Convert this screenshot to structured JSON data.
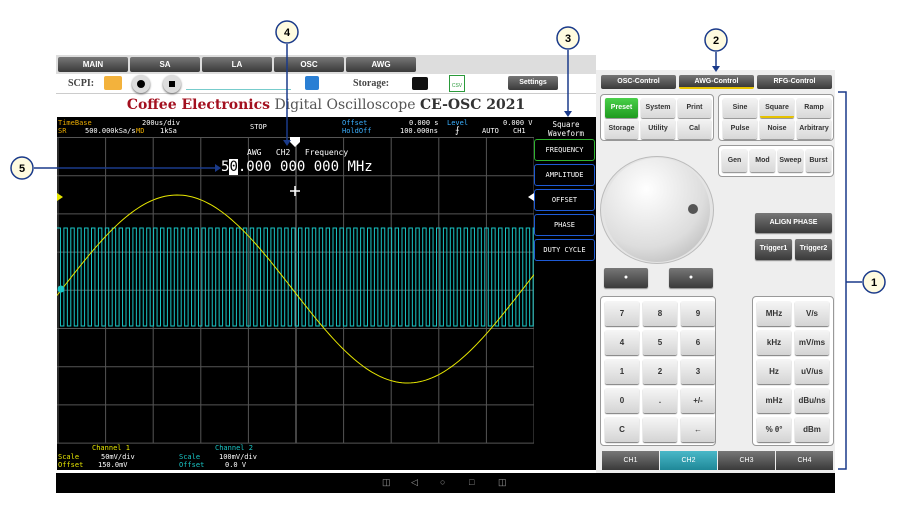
{
  "top_tabs": [
    "MAIN",
    "SA",
    "LA",
    "OSC",
    "AWG"
  ],
  "toolbar": {
    "scpi_label": "SCPI:",
    "storage_label": "Storage:",
    "settings_label": "Settings",
    "csv_label": "CSV"
  },
  "title": {
    "brand": "Coffee Electronics",
    "product": "Digital Oscilloscope",
    "model": "CE-OSC 2021"
  },
  "status": {
    "timebase_label": "TimeBase",
    "timebase": "200us/div",
    "sr_label": "SR",
    "sr": "500.000kSa/s",
    "md_label": "MD",
    "md": "1kSa",
    "run": "STOP",
    "offset_label": "Offset",
    "offset": "0.000 s",
    "holdoff_label": "HoldOff",
    "holdoff": "100.000ns",
    "level_label": "Level",
    "level": "0.000 V",
    "mode": "AUTO",
    "source": "CH1",
    "edge_icon": "rising-edge"
  },
  "waveform_title": "Square Waveform",
  "awg_readout": {
    "source": "AWG",
    "channel": "CH2",
    "param": "Frequency",
    "value_cursor": "5",
    "value_sel": "0",
    "value_rest": ".000 000 000 MHz"
  },
  "side_buttons": [
    "FREQUENCY",
    "AMPLITUDE",
    "OFFSET",
    "PHASE",
    "DUTY CYCLE"
  ],
  "channels": {
    "ch1": {
      "name": "Channel 1",
      "scale_label": "Scale",
      "scale": "50mV/div",
      "offset_label": "Offset",
      "offset": "150.0mV"
    },
    "ch2": {
      "name": "Channel 2",
      "scale_label": "Scale",
      "scale": "100mV/div",
      "offset_label": "Offset",
      "offset": "0.0 V"
    }
  },
  "control_tabs": [
    "OSC-Control",
    "AWG-Control",
    "RFG-Control"
  ],
  "preset_group": [
    "Preset",
    "System",
    "Print",
    "Storage",
    "Utility",
    "Cal"
  ],
  "wave_group": [
    "Sine",
    "Square",
    "Ramp",
    "Pulse",
    "Noise",
    "Arbitrary"
  ],
  "mode_group": [
    "Gen",
    "Mod",
    "Sweep",
    "Burst"
  ],
  "align_phase": "ALIGN PHASE",
  "triggers": [
    "Trigger1",
    "Trigger2"
  ],
  "keypad": [
    "7",
    "8",
    "9",
    "4",
    "5",
    "6",
    "1",
    "2",
    "3",
    "0",
    ".",
    "+/-",
    "C",
    "",
    "←"
  ],
  "units": [
    "MHz",
    "V/s",
    "kHz",
    "mV/ms",
    "Hz",
    "uV/us",
    "mHz",
    "dBu/ns",
    "% θ°",
    "dBm"
  ],
  "channel_tabs": [
    "CH1",
    "CH2",
    "CH3",
    "CH4"
  ],
  "callouts": [
    "1",
    "2",
    "3",
    "4",
    "5"
  ],
  "colors": {
    "ch1": "#e6e600",
    "ch2": "#19c6c6",
    "accent_green": "#2fb52f",
    "brand_red": "#a3101f",
    "side_border": "#1e5bd6",
    "ch_tab_active": "#2aa0b0"
  }
}
